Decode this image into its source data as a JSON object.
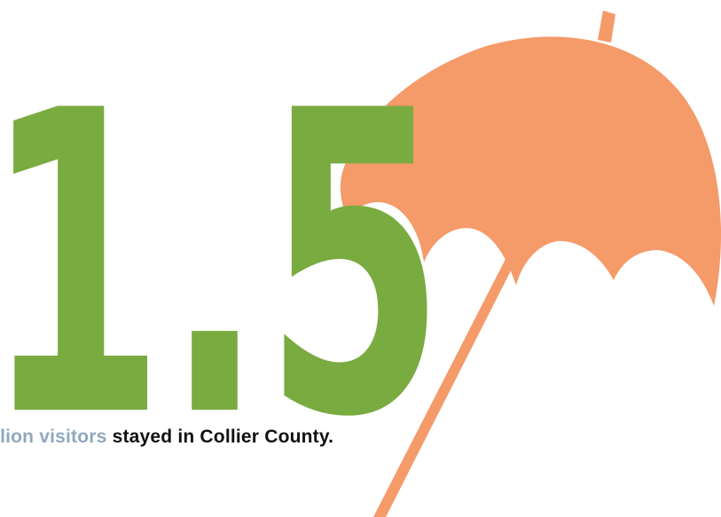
{
  "headline": {
    "number": "1.5",
    "number_color": "#7aab41"
  },
  "caption": {
    "highlight": "illion visitors",
    "rest": " stayed in Collier County.",
    "highlight_color": "#8fa8bd",
    "text_color": "#111111"
  },
  "illustration": {
    "icon": "umbrella-icon",
    "color": "#f59a69"
  }
}
